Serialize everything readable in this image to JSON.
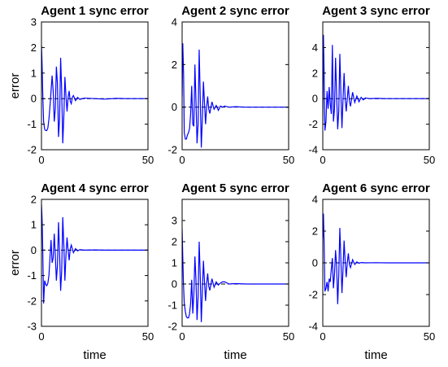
{
  "figure": {
    "xlabel": "time",
    "ylabel": "error",
    "line_color": "#0000ff",
    "dash_color": "#000000"
  },
  "chart_data": [
    {
      "type": "line",
      "title": "Agent 1 sync error",
      "xlim": [
        0,
        50
      ],
      "ylim": [
        -2,
        3
      ],
      "xticks": [
        0,
        50
      ],
      "yticks": [
        -2,
        -1,
        0,
        1,
        2,
        3
      ],
      "xlabel": "",
      "ylabel": "error",
      "series": [
        {
          "color": "#0000ff",
          "x": [
            0,
            0.3,
            0.6,
            1,
            1.5,
            2,
            2.5,
            3,
            3.5,
            4,
            4.5,
            5,
            5.5,
            6,
            6.5,
            7,
            7.5,
            8,
            8.5,
            9,
            9.5,
            10,
            10.5,
            11,
            11.5,
            12,
            12.5,
            13,
            13.5,
            14,
            14.5,
            15,
            16,
            17,
            18,
            20,
            25,
            30,
            35,
            40,
            45,
            50
          ],
          "y": [
            2.1,
            1.3,
            0.2,
            -0.9,
            -1.2,
            -1.25,
            -1.25,
            -1.15,
            -0.8,
            -0.3,
            0.3,
            0.9,
            0.3,
            -0.9,
            -0.4,
            1.25,
            0.6,
            -1.5,
            -0.8,
            1.6,
            0.3,
            -1.75,
            -0.7,
            0.85,
            0.1,
            -0.5,
            0.05,
            0.3,
            -0.1,
            -0.2,
            0.05,
            0.12,
            -0.08,
            0.05,
            -0.03,
            0.02,
            0,
            -0.02,
            0.01,
            0,
            0,
            0
          ]
        }
      ]
    },
    {
      "type": "line",
      "title": "Agent 2 sync error",
      "xlim": [
        0,
        50
      ],
      "ylim": [
        -2,
        4
      ],
      "xticks": [
        0,
        50
      ],
      "yticks": [
        -2,
        0,
        2,
        4
      ],
      "xlabel": "",
      "ylabel": "",
      "series": [
        {
          "color": "#0000ff",
          "x": [
            0,
            0.3,
            0.7,
            1,
            1.5,
            2,
            2.5,
            3,
            3.5,
            4,
            4.5,
            5,
            5.5,
            6,
            6.5,
            7,
            7.5,
            8,
            8.5,
            9,
            9.5,
            10,
            10.5,
            11,
            11.5,
            12,
            12.5,
            13,
            14,
            15,
            16,
            17,
            18,
            19,
            20,
            22,
            25,
            30,
            40,
            50
          ],
          "y": [
            0.5,
            3.0,
            1.5,
            -1.2,
            -1.5,
            -1.5,
            -1.3,
            -1.2,
            -1.0,
            -0.3,
            1.0,
            -0.8,
            -0.9,
            2.0,
            0.3,
            -1.7,
            -0.8,
            2.7,
            0.5,
            -1.9,
            -0.5,
            1.2,
            0.2,
            -0.8,
            0,
            0.5,
            -0.1,
            -0.3,
            0.25,
            -0.1,
            0.08,
            -0.15,
            0.05,
            0,
            0.05,
            0,
            0.02,
            0,
            0,
            0
          ]
        }
      ]
    },
    {
      "type": "line",
      "title": "Agent 3 sync error",
      "xlim": [
        0,
        50
      ],
      "ylim": [
        -4,
        6
      ],
      "xticks": [
        0,
        50
      ],
      "yticks": [
        -4,
        -2,
        0,
        2,
        4
      ],
      "xlabel": "",
      "ylabel": "",
      "series": [
        {
          "color": "#0000ff",
          "x": [
            0,
            0.3,
            0.6,
            1,
            1.5,
            2,
            2.5,
            3,
            3.5,
            4,
            4.5,
            5,
            5.5,
            6,
            6.5,
            7,
            7.5,
            8,
            8.5,
            9,
            9.5,
            10,
            10.5,
            11,
            11.5,
            12,
            12.5,
            13,
            14,
            15,
            16,
            17,
            18,
            19,
            20,
            22,
            25,
            30,
            40,
            50
          ],
          "y": [
            -2.0,
            5.0,
            2.2,
            -2.5,
            -1.8,
            0.6,
            -0.8,
            0.9,
            -0.4,
            -1.2,
            4.2,
            -1.8,
            -0.8,
            3.2,
            0.3,
            -2.4,
            -1.0,
            3.5,
            0.4,
            -2.3,
            0,
            2.0,
            0,
            -1.0,
            0,
            1.0,
            -0.2,
            -0.6,
            0.5,
            -0.3,
            0.2,
            -0.25,
            0.1,
            -0.1,
            0.05,
            0,
            0.02,
            0,
            0,
            0
          ]
        }
      ]
    },
    {
      "type": "line",
      "title": "Agent 4 sync error",
      "xlim": [
        0,
        50
      ],
      "ylim": [
        -3,
        2
      ],
      "xticks": [
        0,
        50
      ],
      "yticks": [
        -3,
        -2,
        -1,
        0,
        1,
        2
      ],
      "xlabel": "time",
      "ylabel": "error",
      "series": [
        {
          "color": "#0000ff",
          "x": [
            0,
            0.3,
            0.6,
            1,
            1.5,
            2,
            2.5,
            3,
            3.5,
            4,
            4.5,
            5,
            5.5,
            6,
            6.5,
            7,
            7.5,
            8,
            8.5,
            9,
            9.5,
            10,
            10.5,
            11,
            11.5,
            12,
            12.5,
            13,
            13.5,
            14,
            15,
            16,
            17,
            18,
            20,
            25,
            30,
            40,
            50
          ],
          "y": [
            1.8,
            1.2,
            0,
            -2.1,
            -1.2,
            -1.35,
            -1.4,
            -1.3,
            -1.0,
            -0.3,
            0.4,
            -0.5,
            -0.3,
            0.65,
            -0.2,
            -1.2,
            -0.6,
            1.1,
            -0.1,
            -1.6,
            -0.8,
            1.3,
            0.2,
            -1.2,
            -0.2,
            0.5,
            0,
            -0.4,
            0.05,
            0.2,
            -0.1,
            0.06,
            -0.03,
            0.02,
            0,
            0.01,
            0,
            0,
            0
          ]
        }
      ]
    },
    {
      "type": "line",
      "title": "Agent 5 sync error",
      "xlim": [
        0,
        50
      ],
      "ylim": [
        -2,
        4
      ],
      "xticks": [
        0,
        50
      ],
      "yticks": [
        -2,
        -1,
        0,
        1,
        2,
        3
      ],
      "xlabel": "time",
      "ylabel": "",
      "series": [
        {
          "color": "#0000ff",
          "x": [
            0,
            0.3,
            0.6,
            1,
            1.5,
            2,
            2.5,
            3,
            3.5,
            4,
            4.5,
            5,
            5.5,
            6,
            6.5,
            7,
            7.5,
            8,
            8.5,
            9,
            9.5,
            10,
            10.5,
            11,
            11.5,
            12,
            12.5,
            13,
            14,
            15,
            16,
            17,
            18,
            19,
            20,
            22,
            25,
            30,
            40,
            50
          ],
          "y": [
            2.6,
            1.3,
            0.1,
            -0.9,
            -1.3,
            -1.55,
            -1.6,
            -1.6,
            -1.4,
            -0.9,
            0.2,
            -1.4,
            -0.5,
            1.3,
            0.2,
            -1.7,
            -0.6,
            2.0,
            0.4,
            -1.8,
            -0.3,
            1.1,
            0.1,
            -0.8,
            0,
            0.5,
            -0.1,
            -0.3,
            0.25,
            -0.15,
            0.1,
            -0.05,
            0.05,
            0.1,
            0.1,
            0,
            0.02,
            0,
            0,
            0
          ]
        }
      ]
    },
    {
      "type": "line",
      "title": "Agent 6 sync error",
      "xlim": [
        0,
        50
      ],
      "ylim": [
        -4,
        4
      ],
      "xticks": [
        0,
        50
      ],
      "yticks": [
        -4,
        -2,
        0,
        2,
        4
      ],
      "xlabel": "time",
      "ylabel": "",
      "series": [
        {
          "color": "#0000ff",
          "x": [
            0,
            0.3,
            0.6,
            1,
            1.5,
            2,
            2.5,
            3,
            3.5,
            4,
            4.5,
            5,
            5.5,
            6,
            6.5,
            7,
            7.5,
            8,
            8.5,
            9,
            9.5,
            10,
            10.5,
            11,
            11.5,
            12,
            12.5,
            13,
            14,
            15,
            16,
            17,
            18,
            20,
            25,
            30,
            40,
            50
          ],
          "y": [
            1.5,
            3.1,
            1.4,
            -1.8,
            -1.6,
            -1.2,
            -1.8,
            -1.0,
            -1.2,
            -0.4,
            0.3,
            -1.6,
            -0.7,
            0.8,
            -0.2,
            -2.6,
            -0.8,
            2.2,
            0.2,
            -1.9,
            -0.4,
            1.4,
            0.1,
            -0.9,
            0,
            0.6,
            -0.1,
            -0.3,
            0.2,
            -0.1,
            0.06,
            -0.03,
            0.02,
            0,
            0.01,
            0,
            0,
            0
          ]
        }
      ]
    }
  ]
}
